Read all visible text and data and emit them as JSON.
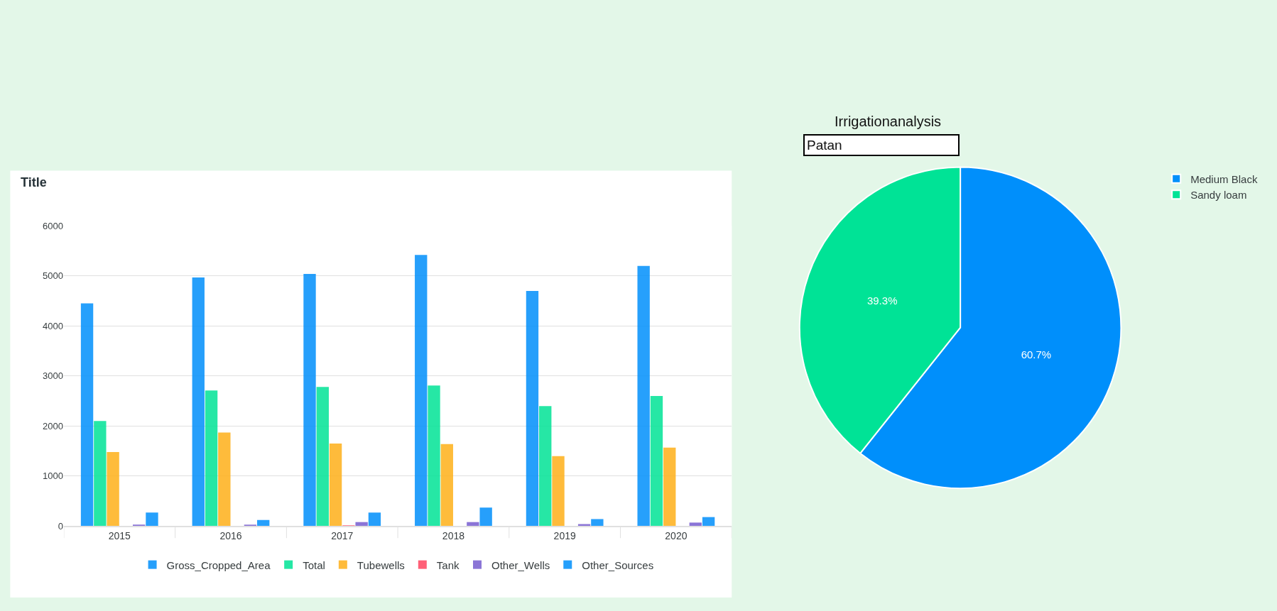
{
  "chart_data": [
    {
      "type": "bar",
      "title": "Title",
      "categories": [
        "2015",
        "2016",
        "2017",
        "2018",
        "2019",
        "2020"
      ],
      "series": [
        {
          "name": "Gross_Cropped_Area",
          "color": "#008ffb",
          "values": [
            4450,
            4970,
            5040,
            5420,
            4700,
            5200
          ]
        },
        {
          "name": "Total",
          "color": "#00e396",
          "values": [
            2100,
            2710,
            2780,
            2810,
            2400,
            2600
          ]
        },
        {
          "name": "Tubewells",
          "color": "#feb019",
          "values": [
            1480,
            1870,
            1650,
            1640,
            1400,
            1570
          ]
        },
        {
          "name": "Tank",
          "color": "#ff4560",
          "values": [
            0,
            0,
            10,
            0,
            0,
            0
          ]
        },
        {
          "name": "Other_Wells",
          "color": "#775dd0",
          "values": [
            30,
            20,
            80,
            80,
            40,
            70
          ]
        },
        {
          "name": "Other_Sources",
          "color": "#008ffb",
          "values": [
            270,
            120,
            270,
            370,
            140,
            180
          ]
        }
      ],
      "ylim": [
        0,
        6000
      ],
      "yticks": [
        0,
        1000,
        2000,
        3000,
        4000,
        5000,
        6000
      ],
      "grid": "y",
      "legend": "bottom"
    },
    {
      "type": "pie",
      "title": "Irrigationanalysis",
      "subtitle": "Patan",
      "categories": [
        "Medium Black",
        "Sandy loam"
      ],
      "values": [
        60.7,
        39.3
      ],
      "colors": [
        "#008ffb",
        "#00e396"
      ],
      "value_labels": [
        "60.7%",
        "39.3%"
      ],
      "legend": "top right"
    }
  ]
}
